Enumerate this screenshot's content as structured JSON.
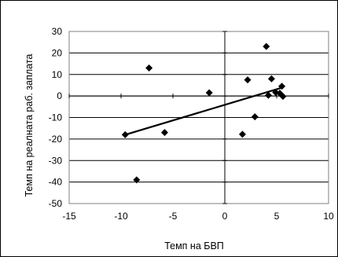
{
  "chart_data": {
    "type": "scatter",
    "xlabel": "Темп на БВП",
    "ylabel": "Темп на реалната раб. заплата",
    "xlim": [
      -15,
      10
    ],
    "ylim": [
      -50,
      30
    ],
    "xticks": [
      -15,
      -10,
      -5,
      0,
      5,
      10
    ],
    "yticks": [
      -50,
      -40,
      -30,
      -20,
      -10,
      0,
      10,
      20,
      30
    ],
    "xtick_labels": [
      "-15",
      "-10",
      "-5",
      "0",
      "5",
      "10"
    ],
    "ytick_labels": [
      "-50",
      "-40",
      "-30",
      "-20",
      "-10",
      "0",
      "10",
      "20",
      "30"
    ],
    "grid": "horizontal",
    "legend": "none",
    "marker": "diamond",
    "marker_color": "#000000",
    "series": [
      {
        "points": [
          {
            "x": -7.3,
            "y": 13
          },
          {
            "x": -1.5,
            "y": 1.5
          },
          {
            "x": -9.6,
            "y": -18
          },
          {
            "x": -5.8,
            "y": -17
          },
          {
            "x": -8.5,
            "y": -39
          },
          {
            "x": 4.0,
            "y": 23
          },
          {
            "x": 2.2,
            "y": 7.5
          },
          {
            "x": 4.5,
            "y": 8
          },
          {
            "x": 5.5,
            "y": 4.5
          },
          {
            "x": 4.2,
            "y": 0.3
          },
          {
            "x": 4.9,
            "y": 1.7
          },
          {
            "x": 5.3,
            "y": 1.3
          },
          {
            "x": 5.6,
            "y": -0.2
          },
          {
            "x": 2.9,
            "y": -9.7
          },
          {
            "x": 1.7,
            "y": -17.8
          }
        ]
      }
    ],
    "trendline": {
      "x": [
        -9.6,
        5.6
      ],
      "y": [
        -18,
        4
      ]
    }
  }
}
